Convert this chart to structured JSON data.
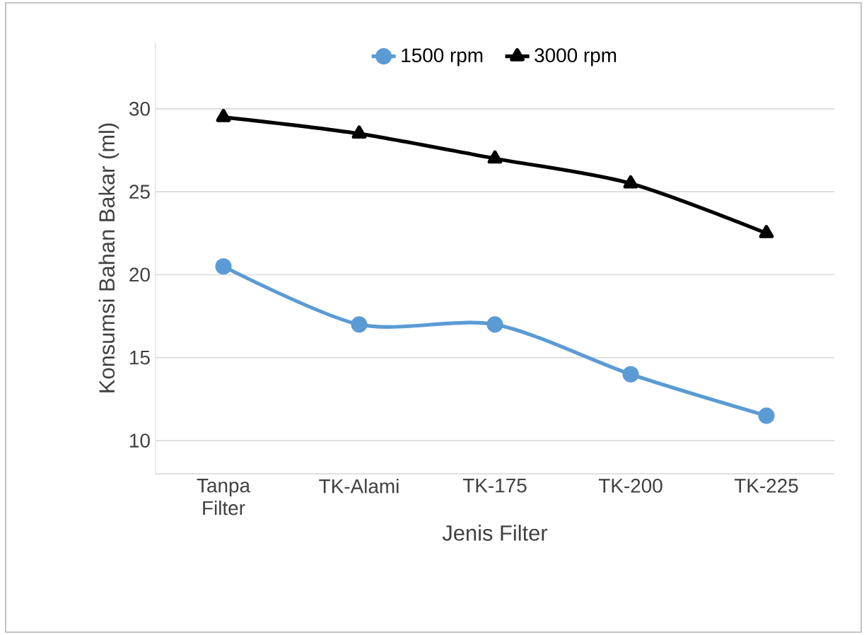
{
  "chart_data": {
    "type": "line",
    "xlabel": "Jenis Filter",
    "ylabel": "Konsumsi Bahan Bakar (ml)",
    "categories": [
      "Tanpa Filter",
      "TK-Alami",
      "TK-175",
      "TK-200",
      "TK-225"
    ],
    "series": [
      {
        "name": "1500 rpm",
        "color": "#5b9bd5",
        "marker": "circle",
        "values": [
          20.5,
          17,
          17,
          14,
          11.5
        ]
      },
      {
        "name": "3000 rpm",
        "color": "#000000",
        "marker": "triangle",
        "values": [
          29.5,
          28.5,
          27,
          25.5,
          22.5
        ]
      }
    ],
    "ylim": [
      8,
      34
    ],
    "yticks": [
      10,
      15,
      20,
      25,
      30
    ],
    "grid": "y",
    "legend": "top"
  }
}
